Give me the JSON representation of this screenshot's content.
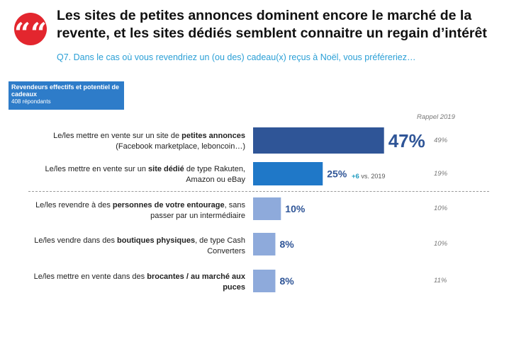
{
  "header": {
    "quote_glyph": "““",
    "title": "Les sites de petites annonces dominent encore le marché de la revente, et les sites dédiés semblent connaitre un regain d’intérêt",
    "subtitle": "Q7. Dans le cas où vous revendriez un (ou des) cadeau(x) reçus à Noël, vous préféreriez…"
  },
  "sample": {
    "title": "Revendeurs effectifs et potentiel de cadeaux",
    "count": "408 répondants"
  },
  "rappel_label": "Rappel 2019",
  "evolution": {
    "delta": "+6",
    "vs": "vs. 2019"
  },
  "rows": [
    {
      "pre": "Le/les mettre en vente sur un site de ",
      "bold": "petites annonces",
      "post": " (Facebook marketplace, leboncoin…)",
      "prev": "49%"
    },
    {
      "pre": "Le/les mettre en vente sur un ",
      "bold": "site dédié",
      "post": " de type Rakuten, Amazon ou eBay",
      "prev": "19%"
    },
    {
      "pre": "Le/les revendre à des ",
      "bold": "personnes de votre entourage",
      "post": ", sans passer par un intermédiaire",
      "prev": "10%"
    },
    {
      "pre": "Le/les vendre dans des ",
      "bold": "boutiques physiques",
      "post": ", de type Cash Converters",
      "prev": "10%"
    },
    {
      "pre": "Le/les mettre en vente dans des ",
      "bold": "brocantes / au marché aux puces",
      "post": "",
      "prev": "11%"
    }
  ],
  "chart_data": {
    "type": "bar",
    "orientation": "horizontal",
    "categories": [
      "Le/les mettre en vente sur un site de petites annonces (Facebook marketplace, leboncoin…)",
      "Le/les mettre en vente sur un site dédié de type Rakuten, Amazon ou eBay",
      "Le/les revendre à des personnes de votre entourage, sans passer par un intermédiaire",
      "Le/les vendre dans des boutiques physiques, de type Cash Converters",
      "Le/les mettre en vente dans des brocantes / au marché aux puces"
    ],
    "values": [
      47,
      25,
      10,
      8,
      8
    ],
    "value_labels": [
      "47%",
      "25%",
      "10%",
      "8%",
      "8%"
    ],
    "previous_2019": [
      49,
      19,
      10,
      10,
      11
    ],
    "xlim": [
      0,
      100
    ],
    "colors": [
      "#2f5597",
      "#1f78c8",
      "#8eaadb",
      "#8eaadb",
      "#8eaadb"
    ],
    "label_color": "#2f5597",
    "grid": false
  }
}
